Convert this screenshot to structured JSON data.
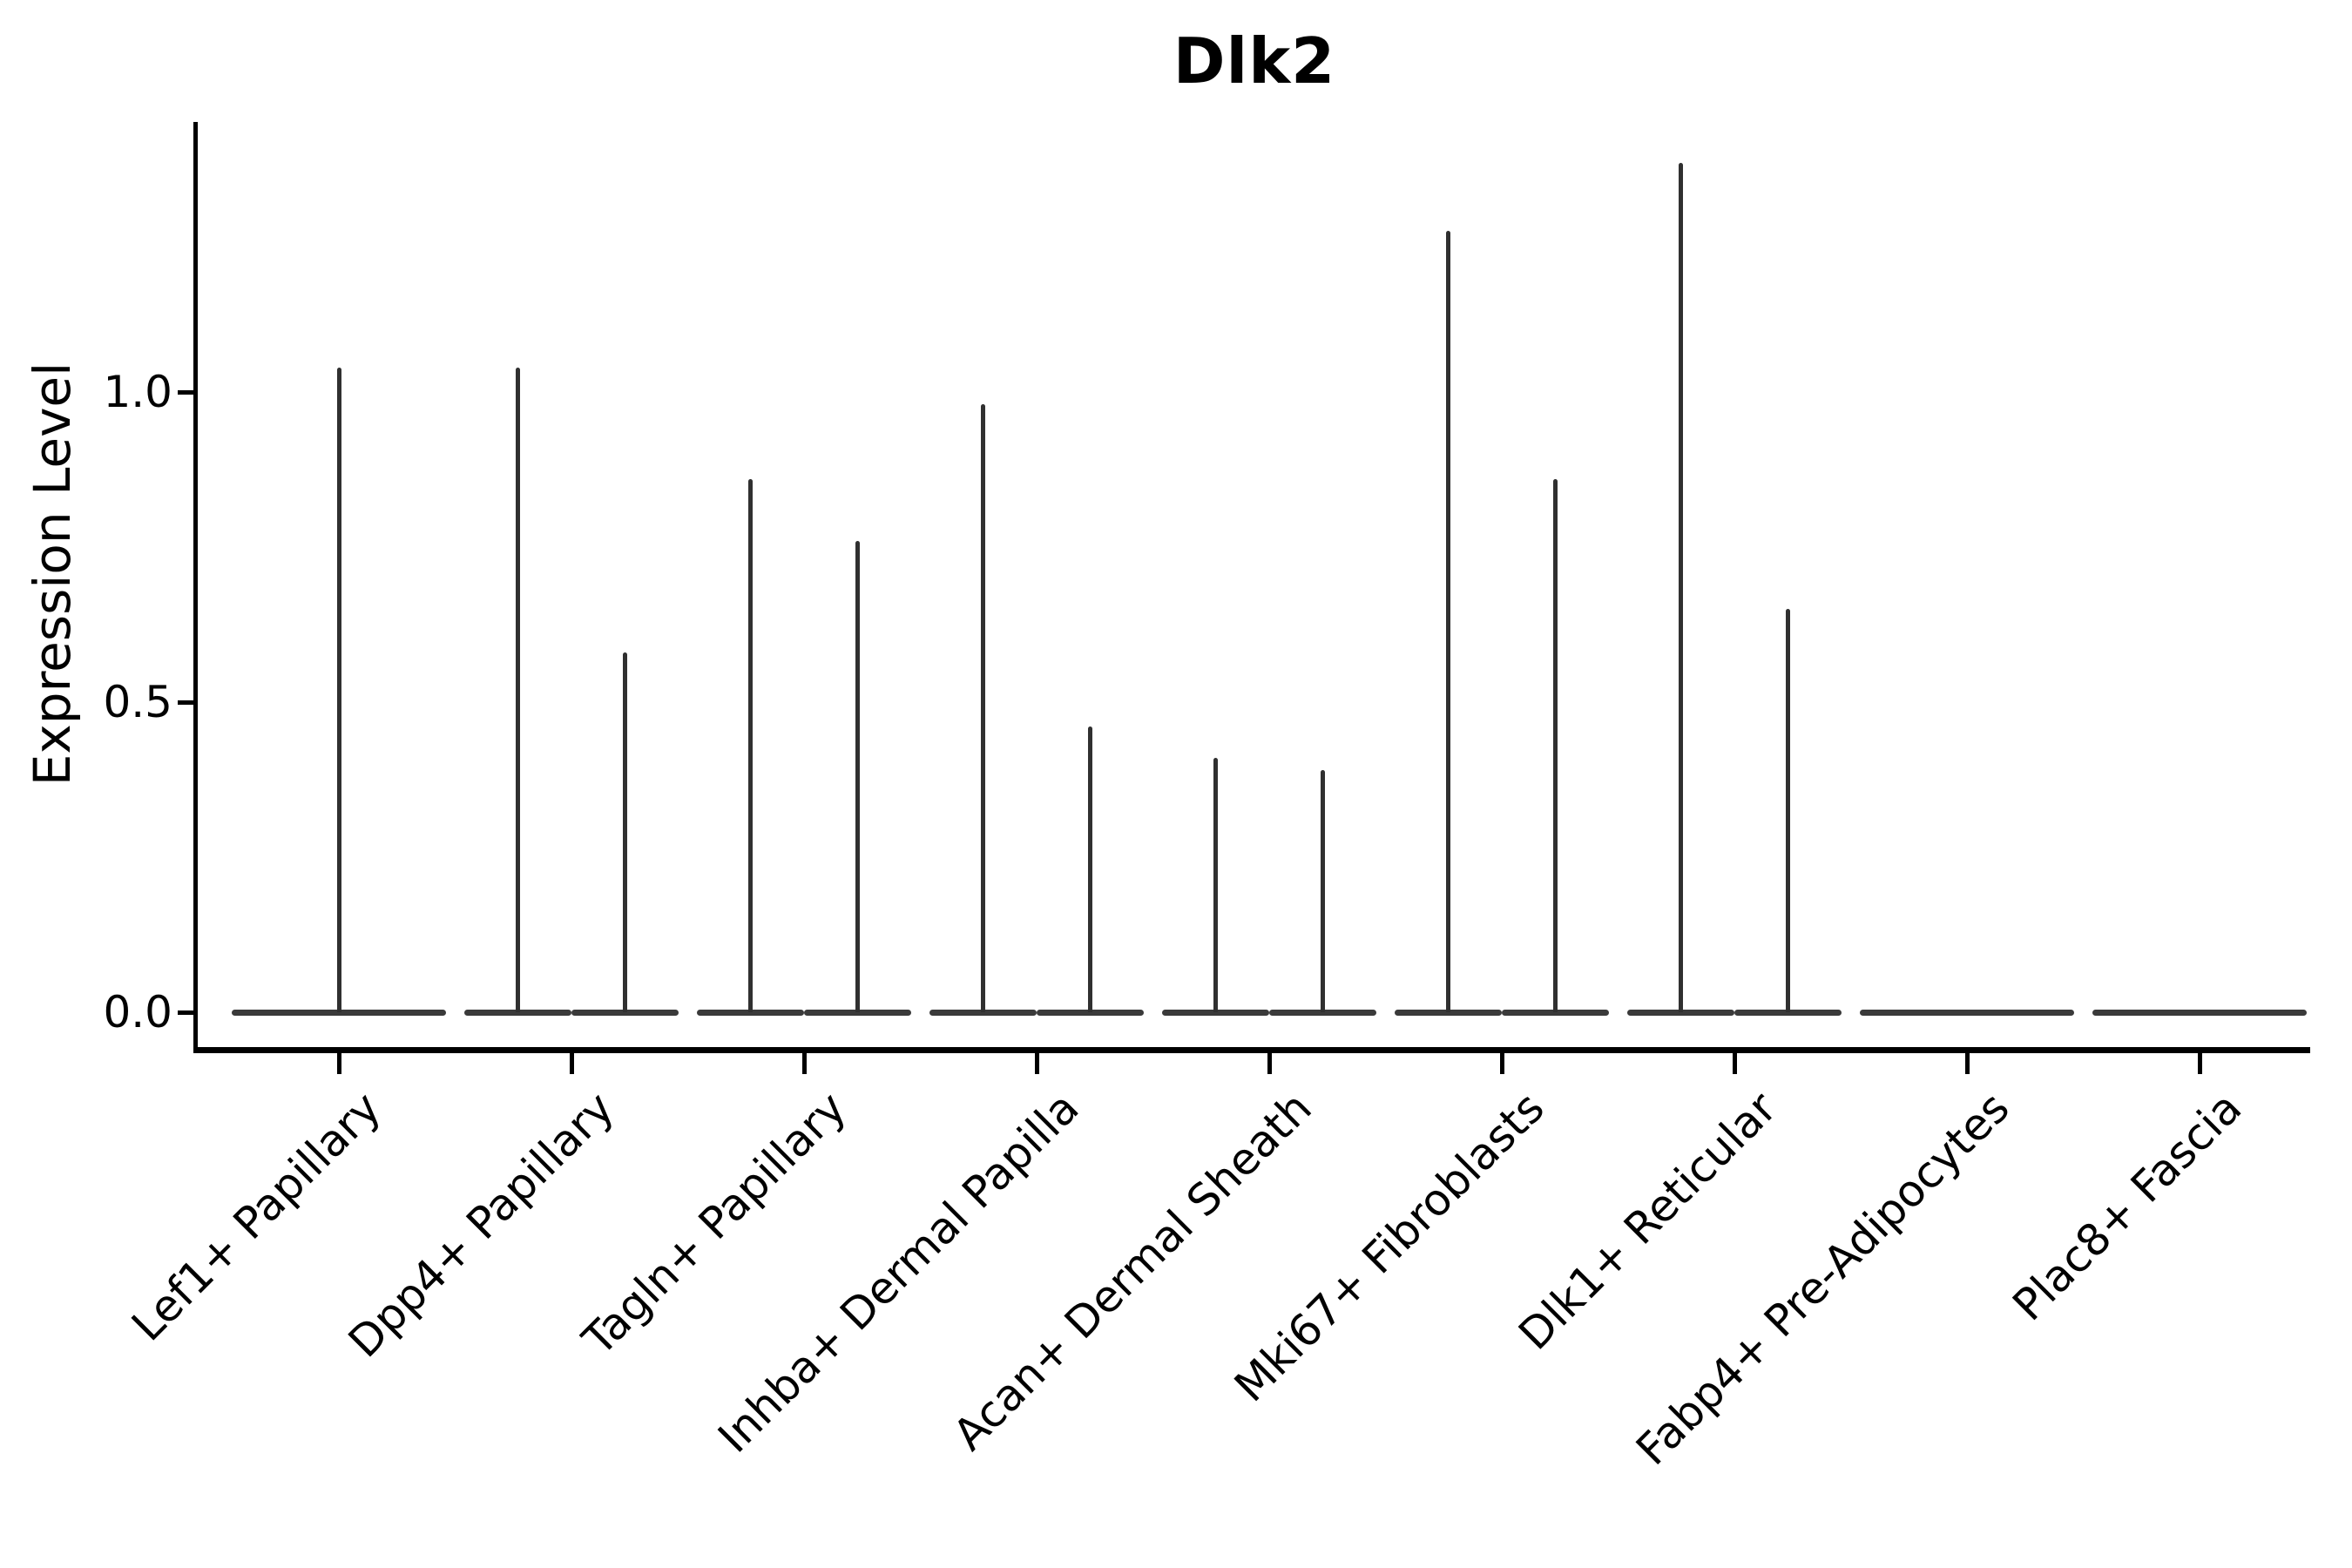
{
  "title": "Dlk2",
  "y_axis": {
    "label": "Expression Level",
    "tick_labels": [
      "0.0",
      "0.5",
      "1.0"
    ]
  },
  "x_axis": {
    "categories": [
      "Lef1+ Papillary",
      "Dpp4+ Papillary",
      "Tagln+ Papillary",
      "Inhba+ Dermal Papilla",
      "Acan+ Dermal Sheath",
      "Mki67+ Fibroblasts",
      "Dlk1+ Reticular",
      "Fabp4+ Pre-Adipocytes",
      "Plac8+ Fascia"
    ]
  },
  "colors": {
    "background": "#ffffff",
    "axis": "#000000",
    "text": "#000000",
    "violin_stroke": "#303030",
    "violin_base": "#3a3a3a"
  },
  "chart_data": {
    "type": "violin",
    "title": "Dlk2",
    "xlabel": "",
    "ylabel": "Expression Level",
    "categories": [
      "Lef1+ Papillary",
      "Dpp4+ Papillary",
      "Tagln+ Papillary",
      "Inhba+ Dermal Papilla",
      "Acan+ Dermal Sheath",
      "Mki67+ Fibroblasts",
      "Dlk1+ Reticular",
      "Fabp4+ Pre-Adipocytes",
      "Plac8+ Fascia"
    ],
    "y_ticks": [
      0.0,
      0.5,
      1.0
    ],
    "ylim": [
      -0.07,
      1.43
    ],
    "grid": false,
    "legend": false,
    "violin_shape": "flat base at 0 with thin vertical spike to max expression",
    "violins_per_category": [
      1,
      2,
      2,
      2,
      2,
      2,
      2,
      1,
      1
    ],
    "max_expression_per_violin": [
      [
        1.04
      ],
      [
        1.04,
        0.58
      ],
      [
        0.86,
        0.76
      ],
      [
        0.98,
        0.46
      ],
      [
        0.41,
        0.39
      ],
      [
        1.26,
        0.86
      ],
      [
        1.37,
        0.65
      ],
      [
        0.0
      ],
      [
        0.0
      ]
    ]
  }
}
